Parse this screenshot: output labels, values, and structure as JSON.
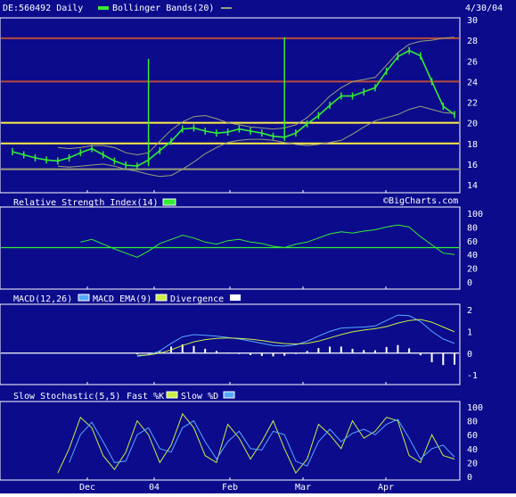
{
  "colors": {
    "background": "#0b0b8c",
    "panel_border": "#ffffff",
    "grid": "#2a2aa6",
    "price": "#33ee33",
    "band": "#9aa07a",
    "support_yellow": "#ffee44",
    "resistance_red": "#b84a3a",
    "rsi_line": "#33ee33",
    "macd_line": "#55aaff",
    "macd_ema": "#ccee44",
    "divergence": "#ffffff",
    "fast_k": "#ccee44",
    "slow_d": "#55aaff",
    "text": "#ffffff"
  },
  "header": {
    "symbol": "DE:560492 Daily",
    "indicator": "Bollinger Bands(20)",
    "date": "4/30/04"
  },
  "watermark": "©BigCharts.com",
  "x_labels": [
    "Dec",
    "04",
    "Feb",
    "Mar",
    "Apr"
  ],
  "chart_data": [
    {
      "type": "line",
      "title": "DE:560492 Daily",
      "ylim": [
        14,
        30
      ],
      "yticks": [
        "30",
        "28",
        "26",
        "24",
        "22",
        "20",
        "18",
        "16",
        "14"
      ],
      "x": [
        "Nov 17",
        "Nov 20",
        "Nov 25",
        "Nov 28",
        "Dec 3",
        "Dec 8",
        "Dec 11",
        "Dec 16",
        "Dec 19",
        "Dec 24",
        "Dec 30",
        "Jan 5",
        "Jan 8",
        "Jan 13",
        "Jan 16",
        "Jan 21",
        "Jan 26",
        "Jan 29",
        "Feb 3",
        "Feb 6",
        "Feb 11",
        "Feb 16",
        "Feb 19",
        "Feb 24",
        "Feb 27",
        "Mar 3",
        "Mar 8",
        "Mar 11",
        "Mar 16",
        "Mar 19",
        "Mar 24",
        "Mar 29",
        "Apr 1",
        "Apr 6",
        "Apr 9",
        "Apr 14",
        "Apr 19",
        "Apr 22",
        "Apr 27",
        "Apr 30"
      ],
      "series": [
        {
          "name": "Price",
          "values": [
            17.2,
            16.9,
            16.6,
            16.4,
            16.3,
            16.6,
            17.1,
            17.5,
            16.9,
            16.3,
            15.9,
            15.8,
            16.4,
            17.3,
            18.2,
            19.4,
            19.5,
            19.2,
            19.0,
            19.1,
            19.4,
            19.2,
            19.0,
            18.7,
            18.6,
            19.0,
            19.9,
            20.7,
            21.7,
            22.6,
            22.6,
            23.0,
            23.4,
            25.0,
            26.4,
            27.0,
            26.5,
            24.0,
            21.6,
            20.8
          ]
        },
        {
          "name": "Upper Band",
          "values": [
            null,
            null,
            null,
            null,
            17.6,
            17.5,
            17.6,
            17.8,
            17.8,
            17.6,
            17.1,
            16.9,
            17.1,
            18.2,
            19.3,
            20.1,
            20.6,
            20.7,
            20.4,
            20.0,
            19.8,
            19.6,
            19.5,
            19.4,
            19.5,
            19.8,
            20.5,
            21.5,
            22.6,
            23.4,
            24.0,
            24.2,
            24.4,
            25.6,
            26.8,
            27.6,
            27.9,
            28.0,
            28.2,
            28.3
          ]
        },
        {
          "name": "Lower Band",
          "values": [
            null,
            null,
            null,
            null,
            15.8,
            15.7,
            15.8,
            15.9,
            16.0,
            15.8,
            15.5,
            15.3,
            15.0,
            14.8,
            14.9,
            15.5,
            16.2,
            17.0,
            17.6,
            18.1,
            18.3,
            18.4,
            18.4,
            18.3,
            18.1,
            17.9,
            17.8,
            17.9,
            18.1,
            18.3,
            18.9,
            19.6,
            20.2,
            20.5,
            20.8,
            21.3,
            21.6,
            21.3,
            21.0,
            20.9
          ]
        }
      ],
      "spikes": [
        {
          "x": "Jan 8",
          "low": 15.8,
          "high": 26.2
        },
        {
          "x": "Feb 27",
          "low": 18.4,
          "high": 28.3
        }
      ],
      "reference_lines": [
        {
          "value": 28.2,
          "color": "resistance_red"
        },
        {
          "value": 24.0,
          "color": "resistance_red"
        },
        {
          "value": 20.0,
          "color": "support_yellow"
        },
        {
          "value": 18.0,
          "color": "support_yellow"
        },
        {
          "value": 15.5,
          "color": "band"
        }
      ],
      "grid": false,
      "legend": "top-left"
    },
    {
      "type": "line",
      "title": "Relative Strength Index(14)",
      "ylim": [
        0,
        100
      ],
      "yticks": [
        "100",
        "80",
        "60",
        "40",
        "20",
        "0"
      ],
      "x": [
        "Nov 17",
        "Nov 20",
        "Nov 25",
        "Nov 28",
        "Dec 3",
        "Dec 8",
        "Dec 11",
        "Dec 16",
        "Dec 19",
        "Dec 24",
        "Dec 30",
        "Jan 5",
        "Jan 8",
        "Jan 13",
        "Jan 16",
        "Jan 21",
        "Jan 26",
        "Jan 29",
        "Feb 3",
        "Feb 6",
        "Feb 11",
        "Feb 16",
        "Feb 19",
        "Feb 24",
        "Feb 27",
        "Mar 3",
        "Mar 8",
        "Mar 11",
        "Mar 16",
        "Mar 19",
        "Mar 24",
        "Mar 29",
        "Apr 1",
        "Apr 6",
        "Apr 9",
        "Apr 14",
        "Apr 19",
        "Apr 22",
        "Apr 27",
        "Apr 30"
      ],
      "series": [
        {
          "name": "RSI",
          "values": [
            null,
            null,
            null,
            null,
            null,
            null,
            58,
            62,
            55,
            48,
            42,
            36,
            45,
            56,
            62,
            68,
            64,
            58,
            55,
            60,
            62,
            58,
            56,
            52,
            50,
            55,
            58,
            64,
            70,
            73,
            71,
            74,
            76,
            80,
            83,
            80,
            66,
            54,
            42,
            40
          ]
        }
      ],
      "reference_lines": [
        {
          "value": 50,
          "color": "price"
        }
      ],
      "grid": false,
      "legend": "top-left"
    },
    {
      "type": "line",
      "title": "MACD(12,26)",
      "ylim": [
        -1.2,
        2
      ],
      "yticks": [
        "2",
        "1",
        "0",
        "-1"
      ],
      "x": [
        "Nov 17",
        "Nov 20",
        "Nov 25",
        "Nov 28",
        "Dec 3",
        "Dec 8",
        "Dec 11",
        "Dec 16",
        "Dec 19",
        "Dec 24",
        "Dec 30",
        "Jan 5",
        "Jan 8",
        "Jan 13",
        "Jan 16",
        "Jan 21",
        "Jan 26",
        "Jan 29",
        "Feb 3",
        "Feb 6",
        "Feb 11",
        "Feb 16",
        "Feb 19",
        "Feb 24",
        "Feb 27",
        "Mar 3",
        "Mar 8",
        "Mar 11",
        "Mar 16",
        "Mar 19",
        "Mar 24",
        "Mar 29",
        "Apr 1",
        "Apr 6",
        "Apr 9",
        "Apr 14",
        "Apr 19",
        "Apr 22",
        "Apr 27",
        "Apr 30"
      ],
      "series": [
        {
          "name": "MACD",
          "values": [
            null,
            null,
            null,
            null,
            null,
            null,
            null,
            null,
            null,
            null,
            null,
            -0.15,
            -0.08,
            0.1,
            0.45,
            0.75,
            0.85,
            0.82,
            0.78,
            0.72,
            0.65,
            0.55,
            0.45,
            0.35,
            0.32,
            0.38,
            0.55,
            0.78,
            1.0,
            1.15,
            1.18,
            1.2,
            1.25,
            1.5,
            1.75,
            1.72,
            1.45,
            1.0,
            0.65,
            0.45
          ]
        },
        {
          "name": "MACD EMA(9)",
          "values": [
            null,
            null,
            null,
            null,
            null,
            null,
            null,
            null,
            null,
            null,
            null,
            -0.1,
            -0.08,
            0.0,
            0.15,
            0.35,
            0.52,
            0.62,
            0.68,
            0.7,
            0.68,
            0.64,
            0.58,
            0.5,
            0.44,
            0.42,
            0.45,
            0.55,
            0.7,
            0.85,
            0.98,
            1.06,
            1.12,
            1.22,
            1.38,
            1.5,
            1.55,
            1.42,
            1.2,
            0.98
          ]
        },
        {
          "name": "Divergence",
          "values": [
            null,
            null,
            null,
            null,
            null,
            null,
            null,
            null,
            null,
            null,
            null,
            -0.05,
            0.0,
            0.1,
            0.3,
            0.4,
            0.33,
            0.2,
            0.1,
            0.02,
            -0.03,
            -0.09,
            -0.13,
            -0.15,
            -0.12,
            -0.04,
            0.1,
            0.23,
            0.3,
            0.3,
            0.2,
            0.14,
            0.13,
            0.28,
            0.37,
            0.22,
            -0.1,
            -0.42,
            -0.55,
            -0.53
          ]
        }
      ],
      "reference_lines": [
        {
          "value": 0,
          "color": "divergence"
        }
      ],
      "grid": false,
      "legend": "top-left"
    },
    {
      "type": "line",
      "title": "Slow Stochastic(5,5)",
      "ylim": [
        0,
        100
      ],
      "yticks": [
        "100",
        "80",
        "60",
        "40",
        "20",
        "0"
      ],
      "x": [
        "Nov 17",
        "Nov 20",
        "Nov 25",
        "Nov 28",
        "Dec 3",
        "Dec 8",
        "Dec 11",
        "Dec 16",
        "Dec 19",
        "Dec 24",
        "Dec 30",
        "Jan 5",
        "Jan 8",
        "Jan 13",
        "Jan 16",
        "Jan 21",
        "Jan 26",
        "Jan 29",
        "Feb 3",
        "Feb 6",
        "Feb 11",
        "Feb 16",
        "Feb 19",
        "Feb 24",
        "Feb 27",
        "Mar 3",
        "Mar 8",
        "Mar 11",
        "Mar 16",
        "Mar 19",
        "Mar 24",
        "Mar 29",
        "Apr 1",
        "Apr 6",
        "Apr 9",
        "Apr 14",
        "Apr 19",
        "Apr 22",
        "Apr 27",
        "Apr 30"
      ],
      "series": [
        {
          "name": "Fast %K",
          "values": [
            null,
            null,
            null,
            null,
            5,
            40,
            85,
            70,
            30,
            10,
            35,
            80,
            60,
            20,
            45,
            90,
            70,
            30,
            20,
            75,
            55,
            25,
            50,
            80,
            40,
            5,
            25,
            75,
            60,
            40,
            80,
            55,
            65,
            85,
            80,
            30,
            20,
            60,
            30,
            25
          ]
        },
        {
          "name": "Slow %D",
          "values": [
            null,
            null,
            null,
            null,
            null,
            20,
            60,
            78,
            50,
            20,
            22,
            60,
            70,
            40,
            35,
            70,
            80,
            50,
            25,
            50,
            65,
            40,
            38,
            65,
            60,
            22,
            15,
            50,
            68,
            50,
            62,
            68,
            60,
            75,
            82,
            55,
            25,
            40,
            45,
            28
          ]
        }
      ],
      "grid": false,
      "legend": "top-left"
    }
  ]
}
